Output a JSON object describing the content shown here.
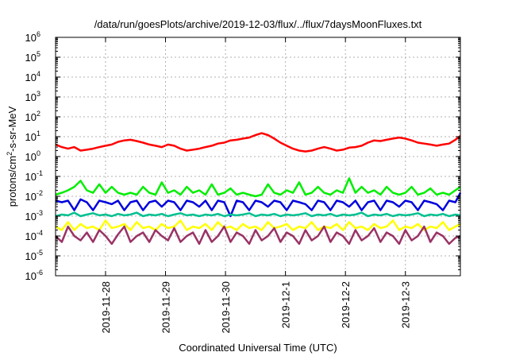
{
  "chart_data": {
    "type": "line",
    "title": "/data/run/goesPlots/archive/2019-12-03/flux/../flux/7daysMoonFluxes.txt",
    "xlabel": "Coordinated Universal Time (UTC)",
    "ylabel": {
      "prefix": "protons/cm",
      "sup": "2",
      "suffix": "-s-sr-MeV"
    },
    "yscale": "log",
    "ylim": [
      1e-06,
      1000000.0
    ],
    "y_ticks": [
      {
        "base": "10",
        "exp": "-6",
        "value": 1e-06
      },
      {
        "base": "10",
        "exp": "-5",
        "value": 1e-05
      },
      {
        "base": "10",
        "exp": "-4",
        "value": 0.0001
      },
      {
        "base": "10",
        "exp": "-3",
        "value": 0.001
      },
      {
        "base": "10",
        "exp": "-2",
        "value": 0.01
      },
      {
        "base": "10",
        "exp": "-1",
        "value": 0.1
      },
      {
        "base": "10",
        "exp": "0",
        "value": 1
      },
      {
        "base": "10",
        "exp": "1",
        "value": 10
      },
      {
        "base": "10",
        "exp": "2",
        "value": 100
      },
      {
        "base": "10",
        "exp": "3",
        "value": 1000
      },
      {
        "base": "10",
        "exp": "4",
        "value": 10000
      },
      {
        "base": "10",
        "exp": "5",
        "value": 100000
      },
      {
        "base": "10",
        "exp": "6",
        "value": 1000000
      }
    ],
    "xlim": [
      "2019-11-27T04:00",
      "2019-12-03T22:00"
    ],
    "x_ticks": [
      {
        "label": "2019-11-28",
        "value": "2019-11-28T00:00"
      },
      {
        "label": "2019-11-29",
        "value": "2019-11-29T00:00"
      },
      {
        "label": "2019-11-30",
        "value": "2019-11-30T00:00"
      },
      {
        "label": "2019-12-1",
        "value": "2019-12-01T00:00"
      },
      {
        "label": "2019-12-2",
        "value": "2019-12-02T00:00"
      },
      {
        "label": "2019-12-3",
        "value": "2019-12-03T00:00"
      }
    ],
    "grid": true,
    "x": [
      "2019-11-27T04:00",
      "2019-11-27T06:30",
      "2019-11-27T09:00",
      "2019-11-27T11:30",
      "2019-11-27T14:00",
      "2019-11-27T16:30",
      "2019-11-27T19:00",
      "2019-11-27T21:30",
      "2019-11-28T00:00",
      "2019-11-28T02:30",
      "2019-11-28T05:00",
      "2019-11-28T07:30",
      "2019-11-28T10:00",
      "2019-11-28T12:30",
      "2019-11-28T15:00",
      "2019-11-28T17:30",
      "2019-11-28T20:00",
      "2019-11-28T22:30",
      "2019-11-29T01:00",
      "2019-11-29T03:30",
      "2019-11-29T06:00",
      "2019-11-29T08:30",
      "2019-11-29T11:00",
      "2019-11-29T13:30",
      "2019-11-29T16:00",
      "2019-11-29T18:30",
      "2019-11-29T21:00",
      "2019-11-29T23:30",
      "2019-11-30T02:00",
      "2019-11-30T04:30",
      "2019-11-30T07:00",
      "2019-11-30T09:30",
      "2019-11-30T12:00",
      "2019-11-30T14:30",
      "2019-11-30T17:00",
      "2019-11-30T19:30",
      "2019-11-30T22:00",
      "2019-12-01T00:30",
      "2019-12-01T03:00",
      "2019-12-01T05:30",
      "2019-12-01T08:00",
      "2019-12-01T10:30",
      "2019-12-01T13:00",
      "2019-12-01T15:30",
      "2019-12-01T18:00",
      "2019-12-01T20:30",
      "2019-12-01T23:00",
      "2019-12-02T01:30",
      "2019-12-02T04:00",
      "2019-12-02T06:30",
      "2019-12-02T09:00",
      "2019-12-02T11:30",
      "2019-12-02T14:00",
      "2019-12-02T16:30",
      "2019-12-02T19:00",
      "2019-12-02T21:30",
      "2019-12-03T00:00",
      "2019-12-03T02:30",
      "2019-12-03T05:00",
      "2019-12-03T07:30",
      "2019-12-03T10:00",
      "2019-12-03T12:30",
      "2019-12-03T15:00",
      "2019-12-03T17:30",
      "2019-12-03T20:00",
      "2019-12-03T22:00"
    ],
    "series": [
      {
        "color": "#ff0000",
        "values": [
          4,
          3,
          2.5,
          3,
          2,
          2.2,
          2.5,
          3,
          3.5,
          4,
          5.5,
          6.5,
          7,
          6,
          5,
          4,
          3.5,
          3,
          4,
          3.5,
          2.5,
          2,
          2.2,
          2.5,
          3,
          3.5,
          4.5,
          5,
          6.5,
          7,
          8,
          9,
          12,
          15,
          12,
          8,
          5,
          3.5,
          2.5,
          2,
          1.8,
          2,
          2.5,
          3,
          2.5,
          2,
          2.2,
          2.8,
          3,
          3.5,
          5,
          6.5,
          6,
          7,
          8,
          9,
          8,
          6.5,
          5,
          4.5,
          4,
          3.5,
          4,
          4.5,
          7,
          11
        ]
      },
      {
        "color": "#00ee00",
        "values": [
          0.012,
          0.015,
          0.02,
          0.03,
          0.06,
          0.02,
          0.015,
          0.04,
          0.015,
          0.03,
          0.015,
          0.012,
          0.015,
          0.012,
          0.03,
          0.015,
          0.012,
          0.05,
          0.015,
          0.02,
          0.012,
          0.03,
          0.015,
          0.02,
          0.012,
          0.04,
          0.012,
          0.015,
          0.025,
          0.012,
          0.015,
          0.012,
          0.01,
          0.012,
          0.04,
          0.015,
          0.012,
          0.02,
          0.015,
          0.05,
          0.012,
          0.015,
          0.03,
          0.015,
          0.012,
          0.02,
          0.015,
          0.08,
          0.015,
          0.03,
          0.015,
          0.02,
          0.012,
          0.03,
          0.015,
          0.012,
          0.015,
          0.03,
          0.012,
          0.015,
          0.025,
          0.012,
          0.015,
          0.012,
          0.02,
          0.03
        ]
      },
      {
        "color": "#0000dd",
        "values": [
          0.006,
          0.005,
          0.006,
          0.002,
          0.007,
          0.005,
          0.002,
          0.006,
          0.005,
          0.004,
          0.006,
          0.002,
          0.005,
          0.006,
          0.002,
          0.005,
          0.006,
          0.003,
          0.006,
          0.005,
          0.002,
          0.006,
          0.005,
          0.003,
          0.006,
          0.002,
          0.006,
          0.005,
          0.001,
          0.006,
          0.005,
          0.002,
          0.006,
          0.005,
          0.003,
          0.006,
          0.005,
          0.002,
          0.006,
          0.005,
          0.004,
          0.002,
          0.006,
          0.005,
          0.002,
          0.006,
          0.005,
          0.003,
          0.006,
          0.002,
          0.005,
          0.006,
          0.002,
          0.006,
          0.005,
          0.003,
          0.006,
          0.005,
          0.002,
          0.006,
          0.005,
          0.004,
          0.002,
          0.006,
          0.005,
          0.015
        ]
      },
      {
        "color": "#00c090",
        "values": [
          0.001,
          0.0012,
          0.0011,
          0.0015,
          0.001,
          0.0012,
          0.0014,
          0.0011,
          0.0012,
          0.001,
          0.0013,
          0.0011,
          0.0012,
          0.0015,
          0.001,
          0.0012,
          0.0011,
          0.0013,
          0.001,
          0.0012,
          0.0014,
          0.0011,
          0.0012,
          0.001,
          0.0012,
          0.0011,
          0.0013,
          0.001,
          0.0012,
          0.0011,
          0.0012,
          0.0014,
          0.001,
          0.0012,
          0.0011,
          0.0013,
          0.001,
          0.0012,
          0.0011,
          0.0012,
          0.0014,
          0.001,
          0.0012,
          0.0011,
          0.0013,
          0.001,
          0.0012,
          0.0011,
          0.0012,
          0.0015,
          0.001,
          0.0012,
          0.0011,
          0.0013,
          0.001,
          0.0012,
          0.0011,
          0.0012,
          0.0014,
          0.001,
          0.0012,
          0.0011,
          0.0013,
          0.001,
          0.0012,
          0.0011
        ]
      },
      {
        "color": "#ffff00",
        "values": [
          0.0003,
          0.0002,
          0.0005,
          0.0002,
          0.0004,
          0.00025,
          0.0003,
          0.0002,
          0.0006,
          0.00025,
          0.0003,
          0.0004,
          0.0002,
          0.0005,
          0.00025,
          0.0003,
          0.0002,
          0.0004,
          0.00025,
          0.0003,
          0.0006,
          0.0002,
          0.0003,
          0.00025,
          0.0004,
          0.0002,
          0.0005,
          0.00025,
          0.0003,
          0.0002,
          0.0004,
          0.00025,
          0.0003,
          0.0002,
          0.0005,
          0.00025,
          0.0003,
          0.0004,
          0.0002,
          0.0003,
          0.00025,
          0.0005,
          0.0002,
          0.0003,
          0.00025,
          0.0004,
          0.0002,
          0.0005,
          0.00025,
          0.0003,
          0.0002,
          0.0004,
          0.00025,
          0.0003,
          0.0006,
          0.0002,
          0.0003,
          0.00025,
          0.0004,
          0.0002,
          0.0003,
          0.00025,
          0.0005,
          0.0002,
          0.0003,
          0.0004
        ]
      },
      {
        "color": "#993366",
        "values": [
          0.0001,
          5e-05,
          0.0003,
          0.0001,
          6e-05,
          0.00015,
          5e-05,
          0.0002,
          0.0001,
          4e-05,
          0.00012,
          0.0003,
          5e-05,
          0.0001,
          0.00015,
          5e-05,
          0.0002,
          0.0001,
          6e-05,
          0.00025,
          5e-05,
          0.0001,
          0.00015,
          4e-05,
          0.0002,
          5e-05,
          0.0001,
          0.0003,
          5e-05,
          0.00015,
          0.0001,
          4e-05,
          0.0002,
          6e-05,
          0.0001,
          0.00025,
          5e-05,
          0.00015,
          0.0001,
          4e-05,
          0.0002,
          6e-05,
          0.0001,
          0.0003,
          5e-05,
          0.00015,
          0.0001,
          4e-05,
          0.0002,
          6e-05,
          0.0001,
          0.00025,
          5e-05,
          0.00015,
          0.0001,
          4e-05,
          0.0002,
          6e-05,
          0.0001,
          0.0003,
          5e-05,
          0.00015,
          0.0001,
          4e-05,
          8e-05,
          0.0001
        ]
      }
    ]
  }
}
